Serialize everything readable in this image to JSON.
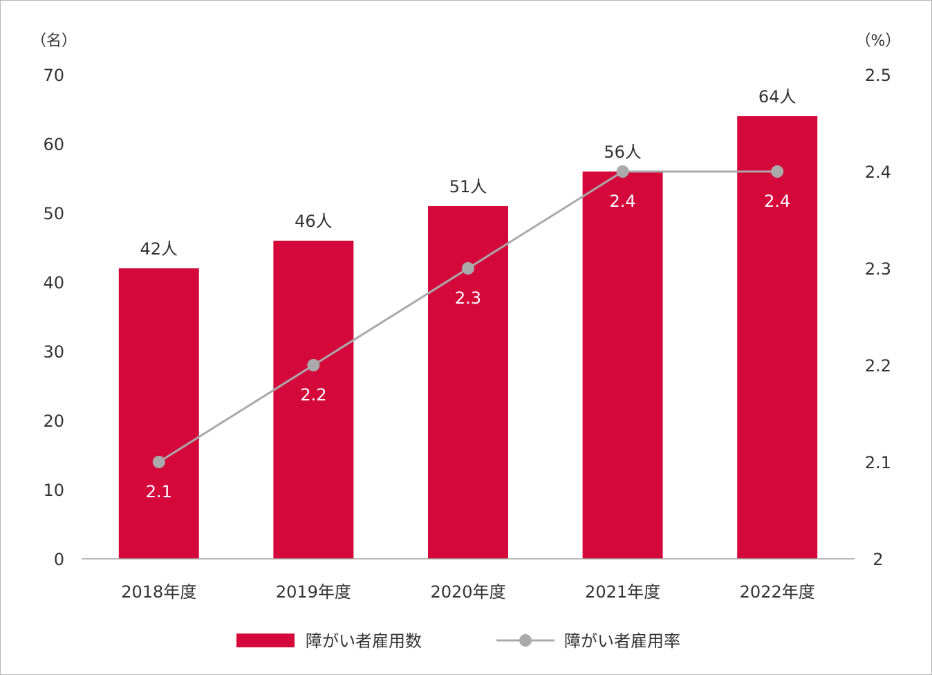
{
  "chart_data": {
    "type": "bar",
    "categories": [
      "2018年度",
      "2019年度",
      "2020年度",
      "2021年度",
      "2022年度"
    ],
    "series": [
      {
        "name": "障がい者雇用数",
        "type": "bar",
        "axis": "left",
        "values": [
          42,
          46,
          51,
          56,
          64
        ],
        "labels": [
          "42人",
          "46人",
          "51人",
          "56人",
          "64人"
        ],
        "color": "#d5083c"
      },
      {
        "name": "障がい者雇用率",
        "type": "line",
        "axis": "right",
        "values": [
          2.1,
          2.2,
          2.3,
          2.4,
          2.4
        ],
        "labels": [
          "2.1",
          "2.2",
          "2.3",
          "2.4",
          "2.4"
        ],
        "color": "#aaaaaa"
      }
    ],
    "y_left": {
      "unit": "（名）",
      "ylim": [
        0,
        70
      ],
      "ticks": [
        "0",
        "10",
        "20",
        "30",
        "40",
        "50",
        "60",
        "70"
      ]
    },
    "y_right": {
      "unit": "（%）",
      "ylim": [
        2,
        2.5
      ],
      "ticks": [
        "2",
        "2.1",
        "2.2",
        "2.3",
        "2.4",
        "2.5"
      ]
    },
    "grid": false,
    "legend_position": "bottom-center"
  }
}
